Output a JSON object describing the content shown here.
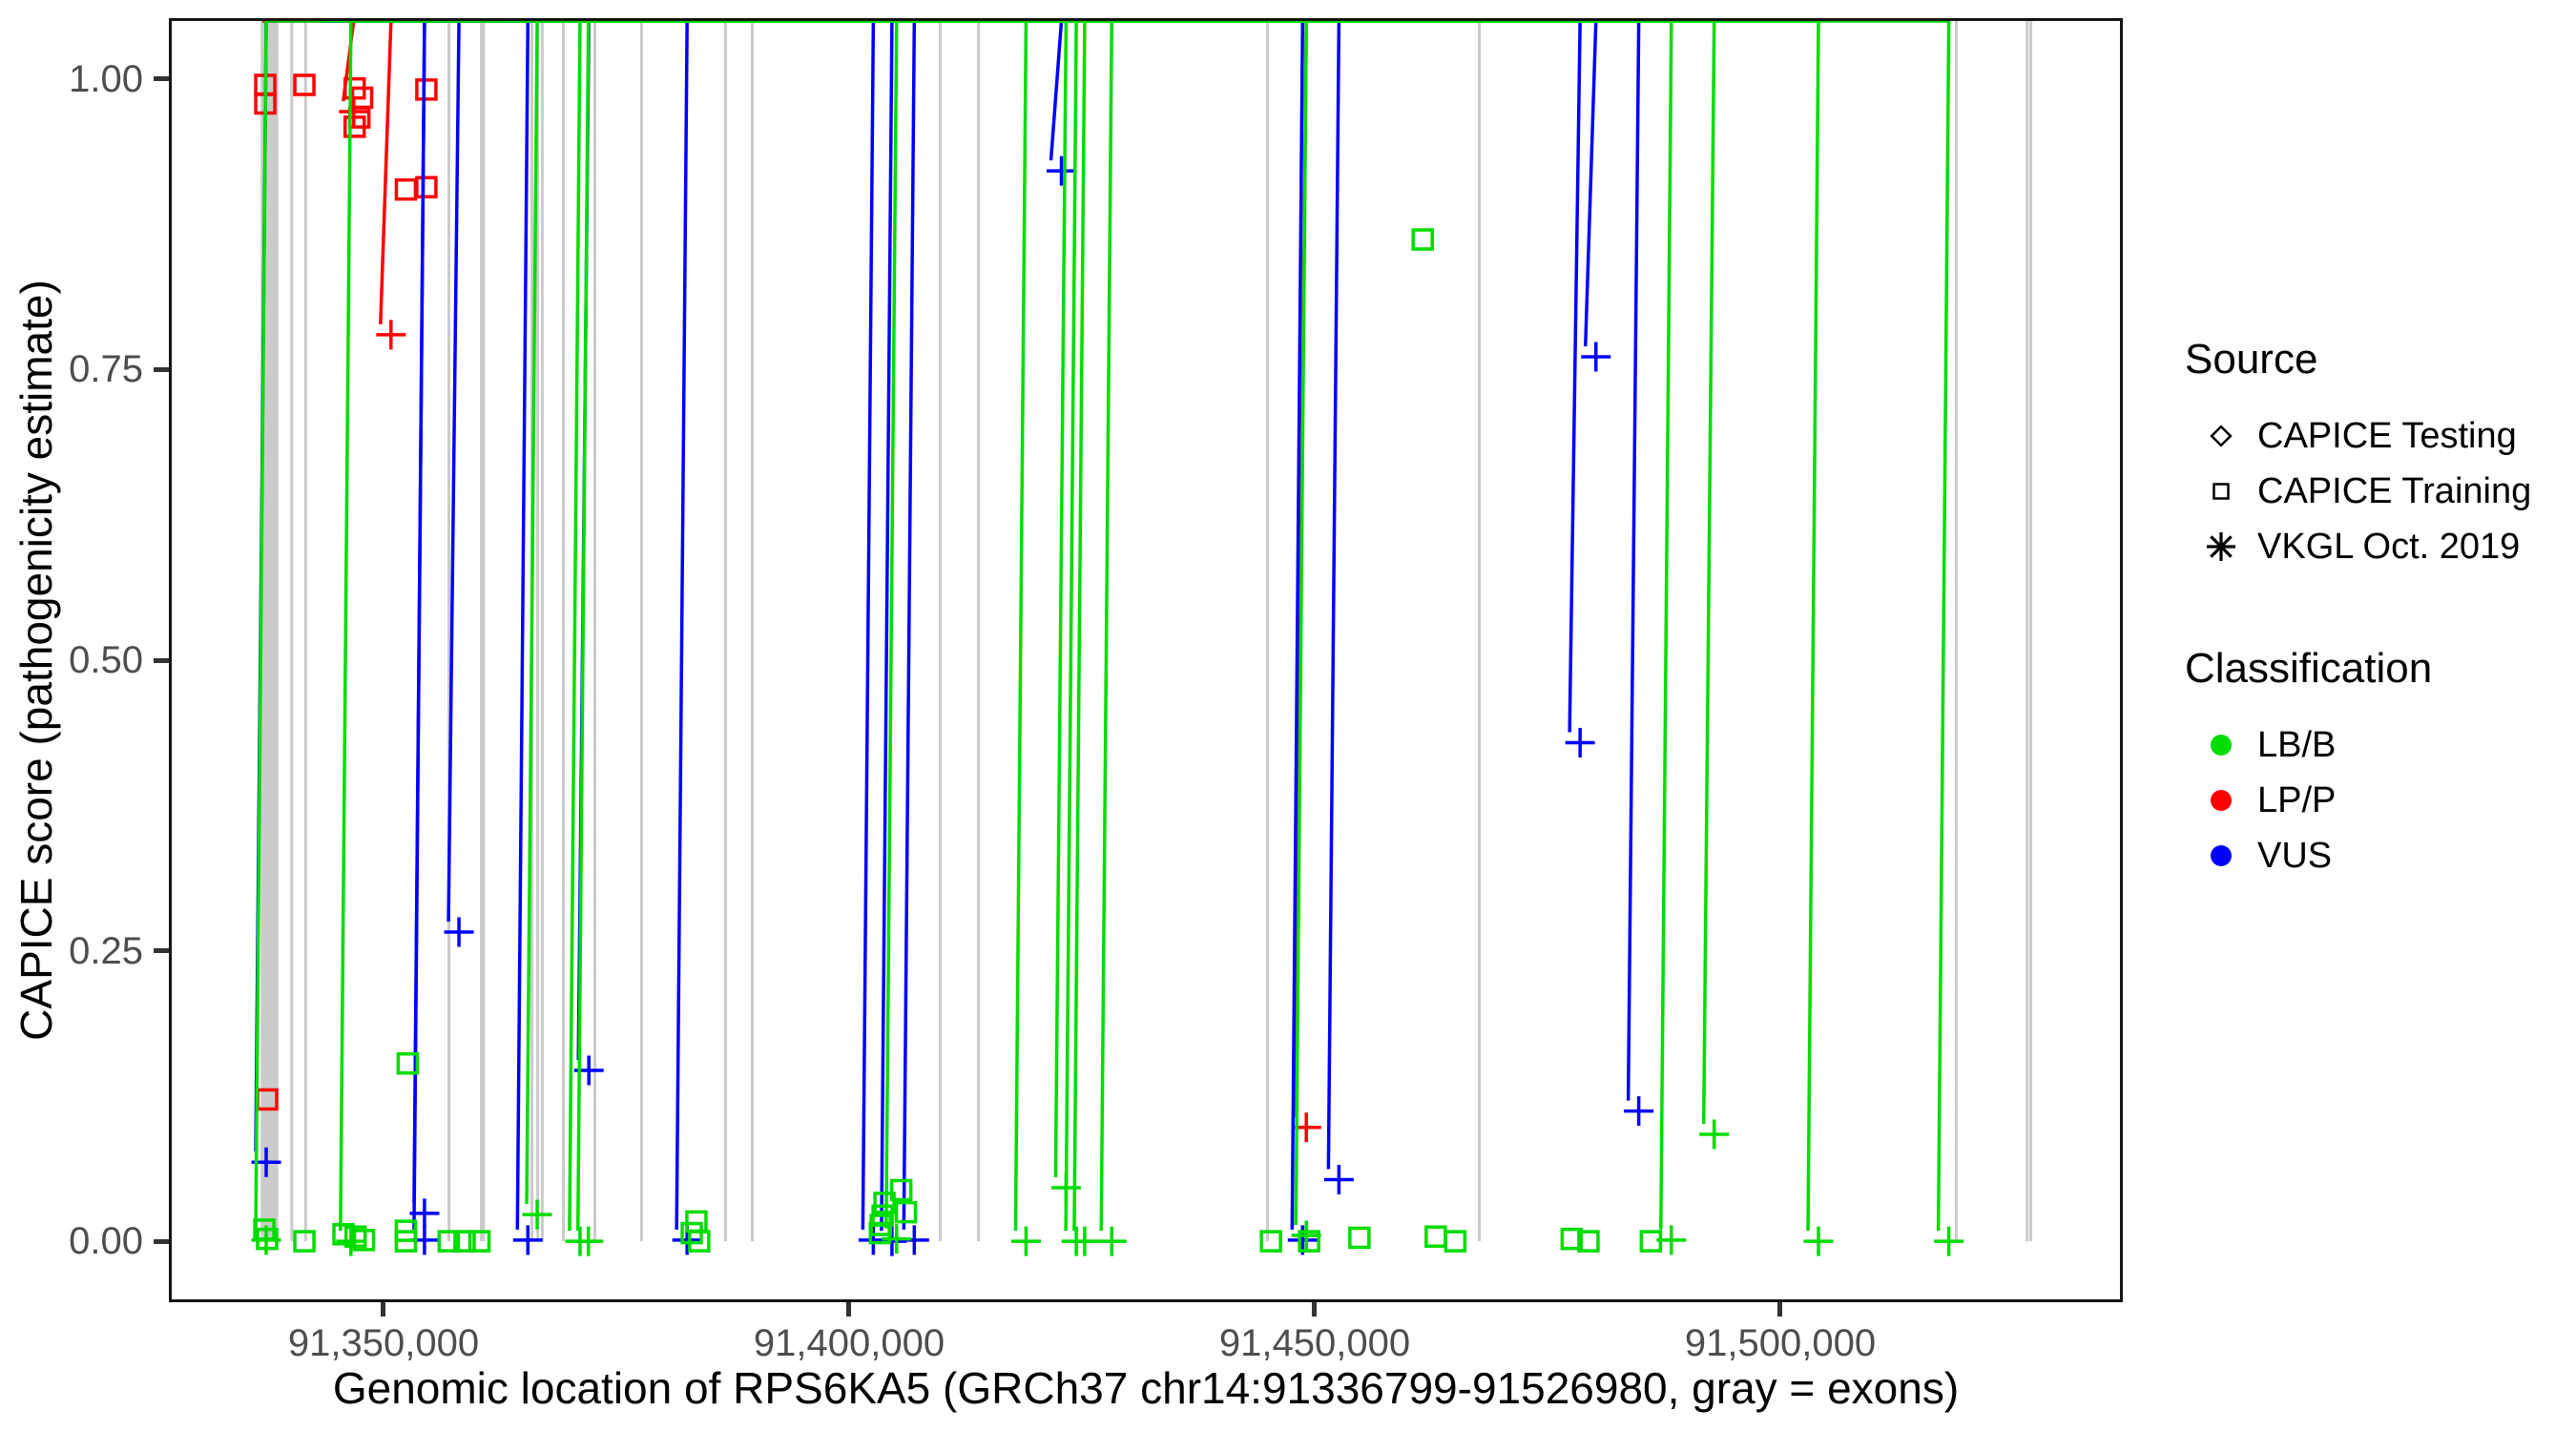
{
  "figure": {
    "background": "#FFFFFF"
  },
  "colors": {
    "lbb": "#00DC00",
    "lpp": "#FF0000",
    "vus": "#0000FF",
    "exon": "#CBCBCB",
    "axis_text": "#4D4D4D",
    "axis_title": "#000000",
    "panel_border": "#141414"
  },
  "chart_data": {
    "type": "scatter",
    "title": "",
    "xlabel": "Genomic location of RPS6KA5 (GRCh37 chr14:91336799-91526980, gray = exons)",
    "ylabel": "CAPICE score (pathogenicity estimate)",
    "x_domain": [
      91327254,
      91536477
    ],
    "y_domain": [
      -0.05,
      1.05
    ],
    "grid": "none",
    "legend_position": "right",
    "x_ticks": [
      {
        "pos": 91350000,
        "label": "91,350,000"
      },
      {
        "pos": 91400000,
        "label": "91,400,000"
      },
      {
        "pos": 91450000,
        "label": "91,450,000"
      },
      {
        "pos": 91500000,
        "label": "91,500,000"
      }
    ],
    "y_ticks": [
      {
        "value": 1.0,
        "label": "1.00"
      },
      {
        "value": 0.75,
        "label": "0.75"
      },
      {
        "value": 0.5,
        "label": "0.50"
      },
      {
        "value": 0.25,
        "label": "0.25"
      },
      {
        "value": 0.0,
        "label": "0.00"
      }
    ],
    "exon_note": "gray bands span from y=0 to top of panel",
    "exons": [
      [
        91336800,
        91338700
      ],
      [
        91339990,
        91340250
      ],
      [
        91341480,
        91341740
      ],
      [
        91356860,
        91357120
      ],
      [
        91360350,
        91360900
      ],
      [
        91365780,
        91366030
      ],
      [
        91366400,
        91366650
      ],
      [
        91366900,
        91367150
      ],
      [
        91369160,
        91369420
      ],
      [
        91372540,
        91372800
      ],
      [
        91377560,
        91377820
      ],
      [
        91386580,
        91386840
      ],
      [
        91389450,
        91389710
      ],
      [
        91409630,
        91409890
      ],
      [
        91413730,
        91413990
      ],
      [
        91444780,
        91445040
      ],
      [
        91467520,
        91467780
      ],
      [
        91518740,
        91519000
      ],
      [
        91526350,
        91526650
      ],
      [
        91526750,
        91526980
      ]
    ],
    "point_format": [
      "genomic_position",
      "capice_score",
      "shape(sq=CAPICE Training square, ast=VKGL asterisk, di=CAPICE Testing diamond)",
      "classification(lbb|lpp|vus)"
    ],
    "points": [
      [
        91337300,
        0.995,
        "sq",
        "lpp"
      ],
      [
        91337300,
        0.979,
        "sq",
        "lpp"
      ],
      [
        91341500,
        0.995,
        "sq",
        "lpp"
      ],
      [
        91346900,
        0.992,
        "sq",
        "lpp"
      ],
      [
        91347700,
        0.984,
        "sq",
        "lpp"
      ],
      [
        91346800,
        0.972,
        "ast",
        "lpp"
      ],
      [
        91347400,
        0.967,
        "sq",
        "lpp"
      ],
      [
        91346900,
        0.959,
        "sq",
        "lpp"
      ],
      [
        91354600,
        0.991,
        "sq",
        "lpp"
      ],
      [
        91352400,
        0.905,
        "sq",
        "lpp"
      ],
      [
        91354600,
        0.907,
        "sq",
        "lpp"
      ],
      [
        91350800,
        0.78,
        "ast",
        "lpp"
      ],
      [
        91337500,
        0.122,
        "sq",
        "lpp"
      ],
      [
        91449100,
        0.098,
        "ast",
        "lpp"
      ],
      [
        91337400,
        0.068,
        "ast",
        "vus"
      ],
      [
        91358100,
        0.266,
        "ast",
        "vus"
      ],
      [
        91372050,
        0.147,
        "ast",
        "vus"
      ],
      [
        91354400,
        0.024,
        "ast",
        "vus"
      ],
      [
        91422800,
        0.921,
        "ast",
        "vus"
      ],
      [
        91480200,
        0.761,
        "ast",
        "vus"
      ],
      [
        91478500,
        0.429,
        "ast",
        "vus"
      ],
      [
        91484800,
        0.112,
        "ast",
        "vus"
      ],
      [
        91452600,
        0.053,
        "ast",
        "vus"
      ],
      [
        91354400,
        0.001,
        "ast",
        "vus"
      ],
      [
        91365500,
        0.001,
        "ast",
        "vus"
      ],
      [
        91382600,
        0.001,
        "ast",
        "vus"
      ],
      [
        91402600,
        0.001,
        "ast",
        "vus"
      ],
      [
        91404600,
        0.0,
        "ast",
        "vus"
      ],
      [
        91407000,
        0.001,
        "ast",
        "vus"
      ],
      [
        91448700,
        0.001,
        "ast",
        "vus"
      ],
      [
        91352600,
        0.153,
        "sq",
        "lbb"
      ],
      [
        91461600,
        0.862,
        "sq",
        "lbb"
      ],
      [
        91492900,
        0.092,
        "ast",
        "lbb"
      ],
      [
        91423300,
        0.046,
        "ast",
        "lbb"
      ],
      [
        91405600,
        0.044,
        "sq",
        "lbb"
      ],
      [
        91403800,
        0.033,
        "sq",
        "lbb"
      ],
      [
        91406100,
        0.025,
        "sq",
        "lbb"
      ],
      [
        91366500,
        0.023,
        "ast",
        "lbb"
      ],
      [
        91403600,
        0.022,
        "sq",
        "lbb"
      ],
      [
        91383600,
        0.017,
        "sq",
        "lbb"
      ],
      [
        91403400,
        0.014,
        "sq",
        "lbb"
      ],
      [
        91337200,
        0.01,
        "sq",
        "lbb"
      ],
      [
        91352400,
        0.009,
        "sq",
        "lbb"
      ],
      [
        91383100,
        0.007,
        "sq",
        "lbb"
      ],
      [
        91403300,
        0.007,
        "sq",
        "lbb"
      ],
      [
        91345700,
        0.006,
        "sq",
        "lbb"
      ],
      [
        91449100,
        0.005,
        "ast",
        "lbb"
      ],
      [
        91347000,
        0.004,
        "sq",
        "lbb"
      ],
      [
        91454800,
        0.003,
        "sq",
        "lbb"
      ],
      [
        91463000,
        0.004,
        "sq",
        "lbb"
      ],
      [
        91477600,
        0.002,
        "sq",
        "lbb"
      ],
      [
        91405100,
        0.002,
        "ast",
        "lbb"
      ],
      [
        91347900,
        0.001,
        "sq",
        "lbb"
      ],
      [
        91488300,
        0.001,
        "ast",
        "lbb"
      ],
      [
        91337500,
        0.002,
        "sq",
        "lbb"
      ],
      [
        91337400,
        0.001,
        "ast",
        "lbb"
      ],
      [
        91341500,
        0.0,
        "sq",
        "lbb"
      ],
      [
        91346500,
        0.0,
        "ast",
        "lbb"
      ],
      [
        91352400,
        0.0,
        "sq",
        "lbb"
      ],
      [
        91357000,
        0.0,
        "sq",
        "lbb"
      ],
      [
        91358700,
        0.0,
        "sq",
        "lbb"
      ],
      [
        91360300,
        0.0,
        "sq",
        "lbb"
      ],
      [
        91371100,
        0.0,
        "ast",
        "lbb"
      ],
      [
        91372000,
        0.0,
        "ast",
        "lbb"
      ],
      [
        91383900,
        0.0,
        "sq",
        "lbb"
      ],
      [
        91419000,
        0.0,
        "ast",
        "lbb"
      ],
      [
        91424400,
        0.0,
        "ast",
        "lbb"
      ],
      [
        91425300,
        0.0,
        "ast",
        "lbb"
      ],
      [
        91428200,
        0.0,
        "ast",
        "lbb"
      ],
      [
        91445300,
        0.0,
        "sq",
        "lbb"
      ],
      [
        91449400,
        0.0,
        "sq",
        "lbb"
      ],
      [
        91465100,
        0.0,
        "sq",
        "lbb"
      ],
      [
        91479400,
        0.0,
        "sq",
        "lbb"
      ],
      [
        91486100,
        0.0,
        "sq",
        "lbb"
      ],
      [
        91504100,
        0.0,
        "ast",
        "lbb"
      ],
      [
        91518100,
        0.0,
        "ast",
        "lbb"
      ]
    ]
  },
  "legend": {
    "source": {
      "title": "Source",
      "items": [
        {
          "shape": "diamond",
          "label": "CAPICE Testing"
        },
        {
          "shape": "square",
          "label": "CAPICE Training"
        },
        {
          "shape": "asterisk",
          "label": "VKGL Oct. 2019"
        }
      ]
    },
    "classification": {
      "title": "Classification",
      "items": [
        {
          "color_key": "lbb",
          "label": "LB/B"
        },
        {
          "color_key": "lpp",
          "label": "LP/P"
        },
        {
          "color_key": "vus",
          "label": "VUS"
        }
      ]
    }
  }
}
